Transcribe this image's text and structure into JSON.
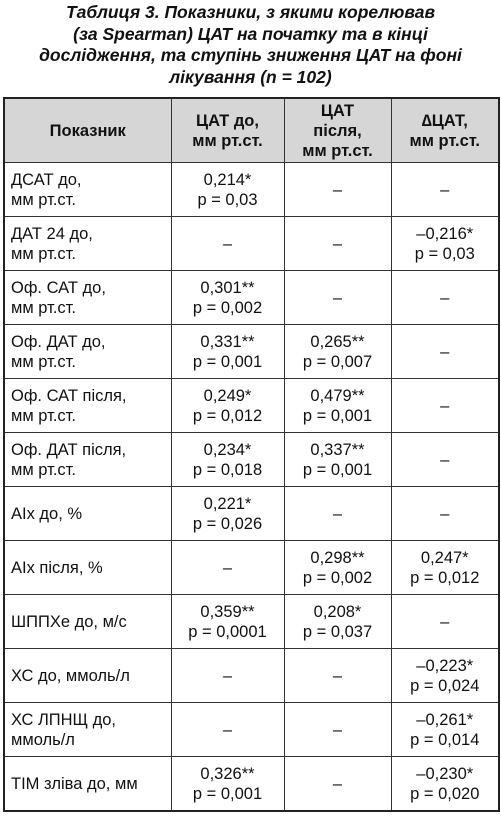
{
  "title_lines": [
    "Таблиця 3. Показники, з якими корелював",
    "(за Spearman) ЦАТ на початку та в кінці",
    "дослідження, та ступінь зниження ЦАТ на фоні",
    "лікування (n = 102)"
  ],
  "table": {
    "header": [
      "Показник",
      "ЦАТ до,\nмм рт.ст.",
      "ЦАТ\nпісля,\nмм рт.ст.",
      "∆ЦАТ,\nмм рт.ст."
    ],
    "rows": [
      [
        "ДСАТ до,\nмм рт.ст.",
        "0,214*\np = 0,03",
        "–",
        "–"
      ],
      [
        "ДАТ 24 до,\nмм рт.ст.",
        "–",
        "–",
        "–0,216*\np = 0,03"
      ],
      [
        "Оф. САТ до,\nмм рт.ст.",
        "0,301**\np = 0,002",
        "–",
        "–"
      ],
      [
        "Оф. ДАТ до,\nмм рт.ст.",
        "0,331**\np = 0,001",
        "0,265**\np = 0,007",
        "–"
      ],
      [
        "Оф. САТ після,\nмм рт.ст.",
        "0,249*\np = 0,012",
        "0,479**\np = 0,001",
        "–"
      ],
      [
        "Оф. ДАТ після,\nмм рт.ст.",
        "0,234*\np = 0,018",
        "0,337**\np = 0,001",
        "–"
      ],
      [
        "AIx до, %",
        "0,221*\np = 0,026",
        "–",
        "–"
      ],
      [
        "AIx після, %",
        "–",
        "0,298**\np = 0,002",
        "0,247*\np = 0,012"
      ],
      [
        "ШППХе до, м/с",
        "0,359**\np = 0,0001",
        "0,208*\np = 0,037",
        "–"
      ],
      [
        "ХС до, ммоль/л",
        "–",
        "–",
        "–0,223*\np = 0,024"
      ],
      [
        "ХС ЛПНЩ до,\nммоль/л",
        "–",
        "–",
        "–0,261*\np = 0,014"
      ],
      [
        "ТІМ зліва до, мм",
        "0,326**\np = 0,001",
        "–",
        "–0,230*\np = 0,020"
      ]
    ]
  }
}
